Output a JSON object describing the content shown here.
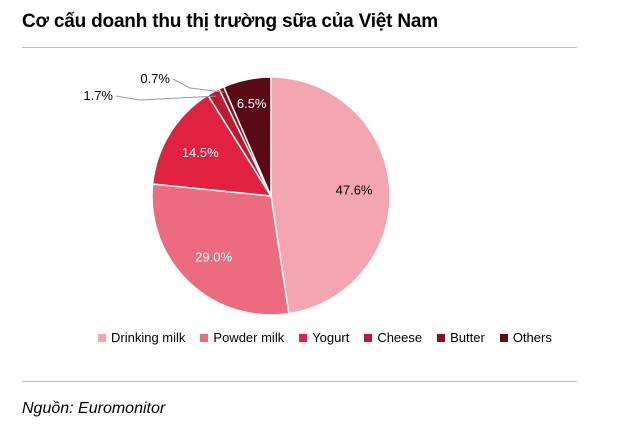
{
  "title": "Cơ cấu doanh thu thị trường sữa của Việt Nam",
  "source": "Nguồn: Euromonitor",
  "chart_data": {
    "type": "pie",
    "categories": [
      "Drinking milk",
      "Powder milk",
      "Yogurt",
      "Cheese",
      "Butter",
      "Others"
    ],
    "values": [
      47.6,
      29.0,
      14.5,
      1.7,
      0.7,
      6.5
    ],
    "labels": [
      "47.6%",
      "29.0%",
      "14.5%",
      "1.7%",
      "0.7%",
      "6.5%"
    ],
    "colors": [
      "#f4a6b0",
      "#ec6b7f",
      "#e0213f",
      "#c01830",
      "#8c1020",
      "#5a0a14"
    ],
    "legend_position": "bottom"
  }
}
